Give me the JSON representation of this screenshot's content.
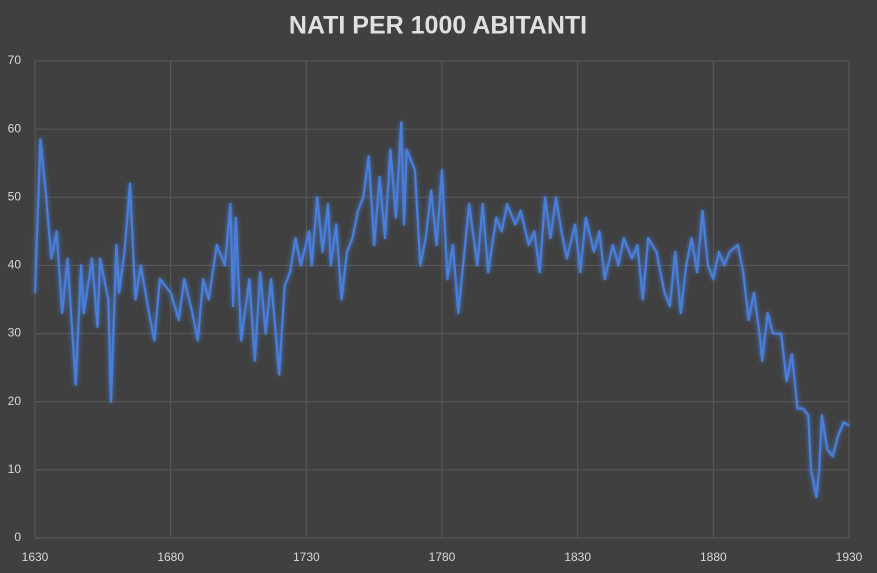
{
  "chart_data": {
    "type": "line",
    "title": "NATI PER 1000 ABITANTI",
    "x": [
      1630,
      1632,
      1634,
      1636,
      1638,
      1640,
      1642,
      1645,
      1647,
      1648,
      1651,
      1653,
      1654,
      1657,
      1658,
      1660,
      1661,
      1663,
      1665,
      1667,
      1669,
      1672,
      1674,
      1676,
      1680,
      1683,
      1685,
      1688,
      1690,
      1692,
      1694,
      1697,
      1700,
      1702,
      1703,
      1704,
      1706,
      1709,
      1711,
      1713,
      1715,
      1717,
      1720,
      1722,
      1724,
      1726,
      1728,
      1731,
      1732,
      1734,
      1736,
      1738,
      1739,
      1741,
      1743,
      1745,
      1747,
      1749,
      1751,
      1753,
      1755,
      1757,
      1759,
      1761,
      1763,
      1765,
      1766,
      1767,
      1770,
      1772,
      1774,
      1776,
      1778,
      1780,
      1782,
      1784,
      1786,
      1788,
      1790,
      1793,
      1795,
      1797,
      1800,
      1802,
      1804,
      1807,
      1809,
      1812,
      1814,
      1816,
      1818,
      1820,
      1822,
      1824,
      1826,
      1829,
      1831,
      1833,
      1836,
      1838,
      1840,
      1843,
      1845,
      1847,
      1850,
      1852,
      1854,
      1856,
      1859,
      1862,
      1864,
      1866,
      1868,
      1870,
      1872,
      1874,
      1876,
      1878,
      1880,
      1882,
      1884,
      1886,
      1889,
      1891,
      1893,
      1895,
      1897,
      1898,
      1900,
      1902,
      1905,
      1907,
      1909,
      1911,
      1913,
      1915,
      1916,
      1918,
      1919,
      1920,
      1922,
      1924,
      1926,
      1928,
      1930
    ],
    "series": [
      {
        "name": "Nati per 1000 abitanti",
        "color": "#4a7fdb",
        "values": [
          36,
          58.5,
          50.5,
          41,
          45,
          33,
          41,
          22.5,
          40,
          33,
          41,
          31,
          41,
          35,
          20,
          43,
          36,
          42,
          52,
          35,
          40,
          33,
          29,
          38,
          36,
          32,
          38,
          33,
          29,
          38,
          35,
          43,
          40,
          49,
          34,
          47,
          29,
          38,
          26,
          39,
          30,
          38,
          24,
          37,
          39,
          44,
          40,
          45,
          40,
          50,
          42,
          49,
          40,
          46,
          35,
          42,
          44,
          48,
          50,
          56,
          43,
          53,
          44,
          57,
          47,
          61,
          46,
          57,
          54,
          40,
          44,
          51,
          43,
          54,
          38,
          43,
          33,
          41,
          49,
          40,
          49,
          39,
          47,
          45,
          49,
          46,
          48,
          43,
          45,
          39,
          50,
          44,
          50,
          45,
          41,
          46,
          39,
          47,
          42,
          45,
          38,
          43,
          40,
          44,
          41,
          43,
          35,
          44,
          42,
          36,
          34,
          42,
          33,
          40,
          44,
          39,
          48,
          40,
          38,
          42,
          40,
          42,
          43,
          39,
          32,
          36,
          30,
          26,
          33,
          30,
          30,
          23,
          27,
          19,
          19,
          18,
          10,
          6,
          10,
          18,
          13,
          12,
          15,
          17,
          16.5
        ]
      }
    ],
    "xlim": [
      1630,
      1930
    ],
    "xticks": [
      1630,
      1680,
      1730,
      1780,
      1830,
      1880,
      1930
    ],
    "ylim": [
      0,
      70
    ],
    "yticks": [
      0,
      10,
      20,
      30,
      40,
      50,
      60,
      70
    ],
    "grid": true
  }
}
